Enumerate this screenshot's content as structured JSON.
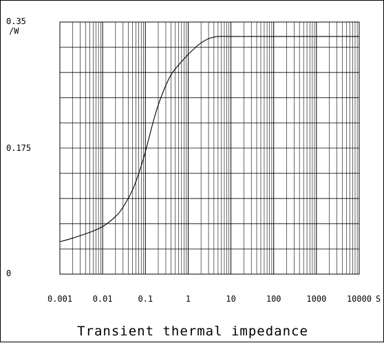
{
  "chart_data": {
    "type": "line",
    "title": "Transient thermal impedance",
    "xlabel": "",
    "ylabel": "",
    "x_scale": "log",
    "xlim": [
      0.001,
      10000
    ],
    "ylim": [
      0,
      0.35
    ],
    "grid": true,
    "x_tick_labels": [
      "0.001",
      "0.01",
      "0.1",
      "1",
      "10",
      "100",
      "1000",
      "10000"
    ],
    "x_unit": "S",
    "y_tick_labels": [
      "0",
      "0.175",
      "0.35"
    ],
    "y_unit": "/W",
    "series": [
      {
        "x": [
          0.001,
          0.002,
          0.005,
          0.01,
          0.02,
          0.03,
          0.05,
          0.07,
          0.1,
          0.15,
          0.2,
          0.3,
          0.4,
          0.5,
          0.7,
          1,
          1.5,
          2,
          3,
          4,
          5,
          10,
          100,
          1000,
          10000
        ],
        "y": [
          0.045,
          0.05,
          0.058,
          0.066,
          0.08,
          0.093,
          0.117,
          0.14,
          0.17,
          0.21,
          0.235,
          0.262,
          0.277,
          0.285,
          0.295,
          0.305,
          0.315,
          0.321,
          0.327,
          0.329,
          0.33,
          0.33,
          0.33,
          0.33,
          0.33
        ]
      }
    ]
  }
}
